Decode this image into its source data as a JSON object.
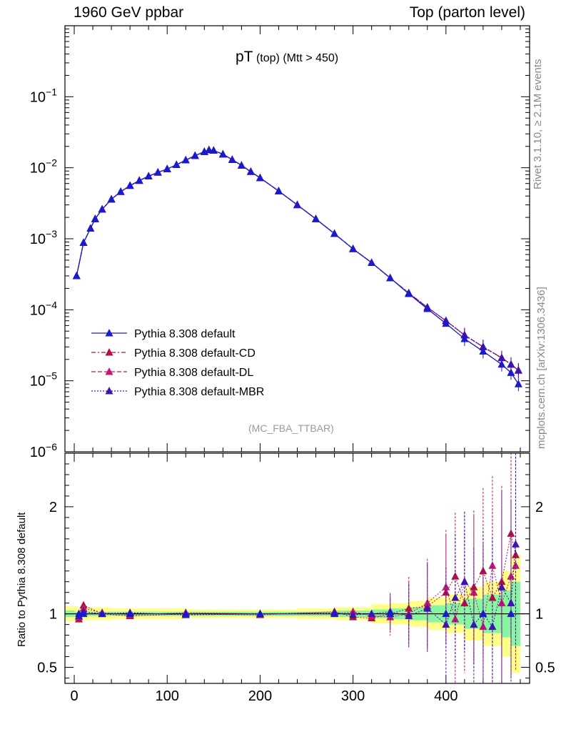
{
  "header": {
    "left": "1960 GeV ppbar",
    "right": "Top (parton level)"
  },
  "side_labels": {
    "rivet": "Rivet 3.1.10, ≥ 2.1M events",
    "mcplots": "mcplots.cern.ch [arXiv:1306.3436]"
  },
  "plot_title": {
    "main": "pT",
    "sub1": "(top)",
    "sub2": "(Mtt > 450)"
  },
  "analysis_tag": "(MC_FBA_TTBAR)",
  "ratio_ylabel": "Ratio to Pythia 8.308 default",
  "colors": {
    "default": "#1a1acd",
    "cd": "#b5103c",
    "dl": "#c2186f",
    "mbr": "#3d14b0",
    "band_yellow": "#ffff88",
    "band_green": "#88f5a0"
  },
  "chart_data": [
    {
      "type": "line",
      "title": "pT (top) (Mtt > 450)",
      "xlabel": "",
      "ylabel": "",
      "yscale": "log",
      "xlim": [
        -10,
        490
      ],
      "ylim": [
        1e-06,
        1
      ],
      "yticks": [
        {
          "value": 1e-06,
          "base": "10",
          "exp": "−6"
        },
        {
          "value": 1e-05,
          "base": "10",
          "exp": "−5"
        },
        {
          "value": 0.0001,
          "base": "10",
          "exp": "−4"
        },
        {
          "value": 0.001,
          "base": "10",
          "exp": "−3"
        },
        {
          "value": 0.01,
          "base": "10",
          "exp": "−2"
        },
        {
          "value": 0.1,
          "base": "10",
          "exp": "−1"
        }
      ],
      "legend_position": "bottom-left",
      "series": [
        {
          "key": "default",
          "name": "Pythia 8.308 default",
          "style": "solid"
        },
        {
          "key": "cd",
          "name": "Pythia 8.308 default-CD",
          "style": "dashdot"
        },
        {
          "key": "dl",
          "name": "Pythia 8.308 default-DL",
          "style": "dashed"
        },
        {
          "key": "mbr",
          "name": "Pythia 8.308 default-MBR",
          "style": "dotted"
        }
      ],
      "x": [
        2.5,
        10,
        17.5,
        22.5,
        30,
        40,
        50,
        60,
        70,
        80,
        90,
        100,
        110,
        120,
        130,
        140,
        145,
        150,
        160,
        170,
        180,
        190,
        200,
        220,
        240,
        260,
        280,
        300,
        320,
        340,
        360,
        380,
        400,
        420,
        440,
        460,
        470,
        478
      ],
      "values_default": [
        0.0003,
        0.00088,
        0.0014,
        0.0019,
        0.0026,
        0.0036,
        0.0046,
        0.0056,
        0.0066,
        0.0076,
        0.0086,
        0.0096,
        0.011,
        0.0128,
        0.0148,
        0.0168,
        0.0178,
        0.0175,
        0.0155,
        0.013,
        0.0108,
        0.0088,
        0.0072,
        0.0047,
        0.003,
        0.0019,
        0.00118,
        0.00072,
        0.00046,
        0.00028,
        0.000168,
        0.000103,
        6.4e-05,
        3.9e-05,
        2.6e-05,
        1.7e-05,
        1.3e-05,
        9e-06
      ],
      "values_variant": [
        0.0003,
        0.00088,
        0.0014,
        0.0019,
        0.0026,
        0.0036,
        0.0046,
        0.0056,
        0.0066,
        0.0076,
        0.0086,
        0.0096,
        0.011,
        0.0128,
        0.0148,
        0.0168,
        0.0178,
        0.0175,
        0.0155,
        0.013,
        0.0108,
        0.0088,
        0.0072,
        0.0047,
        0.003,
        0.0019,
        0.00118,
        0.00072,
        0.00046,
        0.00028,
        0.000172,
        0.000108,
        7e-05,
        4.4e-05,
        3e-05,
        2.1e-05,
        1.7e-05,
        1.4e-05
      ]
    },
    {
      "type": "line",
      "title": "",
      "xlabel": "",
      "ylabel": "Ratio to Pythia 8.308 default",
      "xlim": [
        -10,
        490
      ],
      "ylim": [
        0.35,
        2.5
      ],
      "xticks": [
        0,
        100,
        200,
        300,
        400
      ],
      "yticks": [
        0.5,
        1,
        2
      ],
      "reference_line": 1,
      "band_x_edges": [
        -10,
        0,
        40,
        80,
        120,
        160,
        200,
        240,
        280,
        320,
        340,
        360,
        380,
        400,
        420,
        440,
        460,
        470,
        480
      ],
      "band_yellow_half_width": [
        0.07,
        0.06,
        0.05,
        0.05,
        0.04,
        0.04,
        0.04,
        0.05,
        0.06,
        0.09,
        0.1,
        0.12,
        0.15,
        0.18,
        0.25,
        0.3,
        0.4,
        0.55
      ],
      "band_green_half_width": [
        0.03,
        0.02,
        0.02,
        0.02,
        0.02,
        0.02,
        0.02,
        0.02,
        0.03,
        0.04,
        0.05,
        0.06,
        0.08,
        0.1,
        0.14,
        0.18,
        0.22,
        0.3
      ],
      "series": [
        {
          "key": "cd",
          "name": "Pythia 8.308 default-CD",
          "x": [
            5,
            10,
            30,
            60,
            120,
            200,
            280,
            300,
            320,
            340,
            360,
            380,
            400,
            410,
            420,
            430,
            440,
            450,
            460,
            470,
            475
          ],
          "values": [
            0.95,
            1.08,
            1.0,
            0.98,
            1.0,
            0.99,
            1.02,
            0.97,
            0.96,
            1.0,
            1.05,
            1.07,
            1.2,
            1.35,
            1.1,
            1.25,
            1.4,
            1.15,
            1.3,
            1.75,
            1.55
          ]
        },
        {
          "key": "dl",
          "name": "Pythia 8.308 default-DL",
          "x": [
            5,
            10,
            30,
            60,
            120,
            200,
            280,
            300,
            320,
            340,
            360,
            380,
            400,
            410,
            420,
            430,
            440,
            450,
            460,
            470,
            475
          ],
          "values": [
            0.97,
            1.05,
            1.01,
            0.99,
            1.01,
            1.0,
            1.0,
            1.02,
            0.98,
            0.97,
            1.0,
            1.1,
            1.25,
            0.95,
            1.3,
            1.2,
            0.88,
            1.45,
            1.1,
            1.35,
            1.45
          ]
        },
        {
          "key": "mbr",
          "name": "Pythia 8.308 default-MBR",
          "x": [
            5,
            10,
            30,
            60,
            120,
            200,
            280,
            300,
            320,
            340,
            360,
            380,
            400,
            410,
            420,
            430,
            440,
            450,
            460,
            470,
            475
          ],
          "values": [
            0.98,
            1.02,
            1.0,
            1.01,
            0.99,
            1.0,
            1.01,
            0.99,
            1.0,
            1.02,
            0.98,
            1.05,
            0.9,
            1.15,
            1.3,
            0.9,
            1.0,
            0.88,
            1.25,
            1.1,
            1.65
          ]
        }
      ]
    }
  ]
}
